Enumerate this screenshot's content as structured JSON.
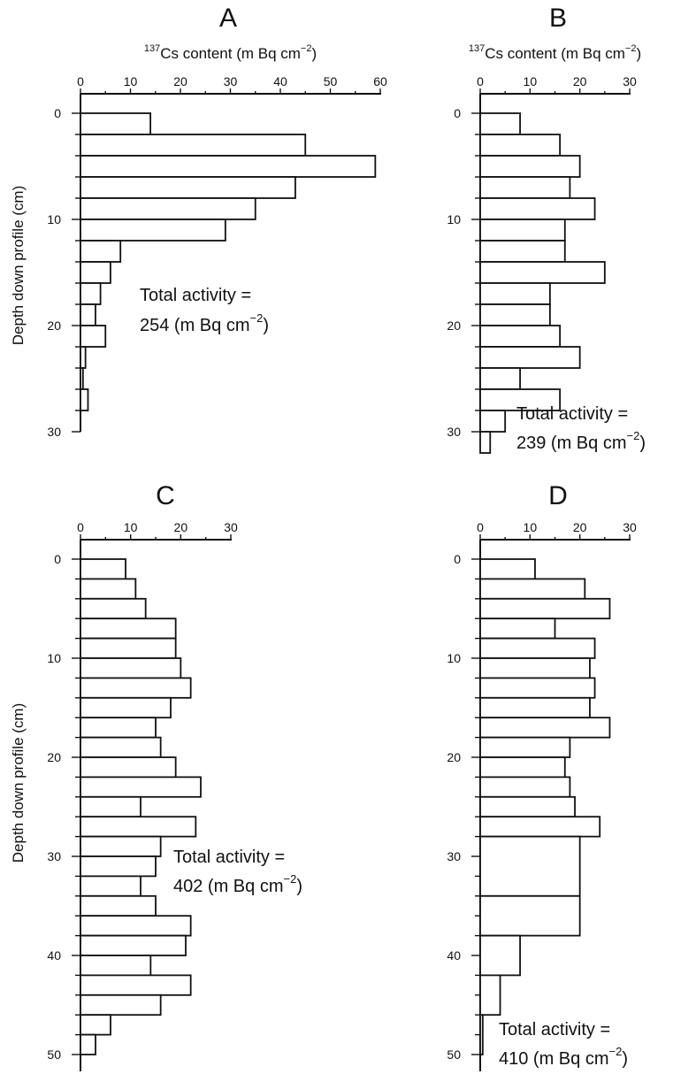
{
  "chart_data": [
    {
      "panel": "A",
      "type": "bar",
      "orientation": "horizontal",
      "xlabel": {
        "iso_sup": "137",
        "main": "Cs content (m Bq cm",
        "exp": "−2",
        "close": ")"
      },
      "ylabel": "Depth down profile (cm)",
      "xlim": [
        0,
        60
      ],
      "xticks": [
        0,
        10,
        20,
        30,
        40,
        50,
        60
      ],
      "ylim": [
        0,
        32
      ],
      "yticks": [
        0,
        10,
        20,
        30
      ],
      "bars": [
        {
          "from": 0,
          "to": 2,
          "value": 14
        },
        {
          "from": 2,
          "to": 4,
          "value": 45
        },
        {
          "from": 4,
          "to": 6,
          "value": 59
        },
        {
          "from": 6,
          "to": 8,
          "value": 43
        },
        {
          "from": 8,
          "to": 10,
          "value": 35
        },
        {
          "from": 10,
          "to": 12,
          "value": 29
        },
        {
          "from": 12,
          "to": 14,
          "value": 8
        },
        {
          "from": 14,
          "to": 16,
          "value": 6
        },
        {
          "from": 16,
          "to": 18,
          "value": 4
        },
        {
          "from": 18,
          "to": 20,
          "value": 3
        },
        {
          "from": 20,
          "to": 22,
          "value": 5
        },
        {
          "from": 22,
          "to": 24,
          "value": 1
        },
        {
          "from": 24,
          "to": 26,
          "value": 0.5
        },
        {
          "from": 26,
          "to": 28,
          "value": 1.5
        }
      ],
      "total": {
        "line1": "Total activity =",
        "main": "254 (m Bq cm",
        "exp": "−2",
        "close": ")"
      }
    },
    {
      "panel": "B",
      "type": "bar",
      "orientation": "horizontal",
      "xlabel": {
        "iso_sup": "137",
        "main": "Cs content (m Bq cm",
        "exp": "−2",
        "close": ")"
      },
      "ylabel": "",
      "xlim": [
        0,
        30
      ],
      "xticks": [
        0,
        10,
        20,
        30
      ],
      "ylim": [
        0,
        32
      ],
      "yticks": [
        0,
        10,
        20,
        30
      ],
      "bars": [
        {
          "from": 0,
          "to": 2,
          "value": 8
        },
        {
          "from": 2,
          "to": 4,
          "value": 16
        },
        {
          "from": 4,
          "to": 6,
          "value": 20
        },
        {
          "from": 6,
          "to": 8,
          "value": 18
        },
        {
          "from": 8,
          "to": 10,
          "value": 23
        },
        {
          "from": 10,
          "to": 12,
          "value": 17
        },
        {
          "from": 12,
          "to": 14,
          "value": 17
        },
        {
          "from": 14,
          "to": 16,
          "value": 25
        },
        {
          "from": 16,
          "to": 18,
          "value": 14
        },
        {
          "from": 18,
          "to": 20,
          "value": 14
        },
        {
          "from": 20,
          "to": 22,
          "value": 16
        },
        {
          "from": 22,
          "to": 24,
          "value": 20
        },
        {
          "from": 24,
          "to": 26,
          "value": 8
        },
        {
          "from": 26,
          "to": 28,
          "value": 16
        },
        {
          "from": 28,
          "to": 30,
          "value": 5
        },
        {
          "from": 30,
          "to": 32,
          "value": 2
        }
      ],
      "total": {
        "line1": "Total activity =",
        "main": "239 (m Bq cm",
        "exp": "−2",
        "close": ")"
      }
    },
    {
      "panel": "C",
      "type": "bar",
      "orientation": "horizontal",
      "xlabel": null,
      "ylabel": "Depth down profile (cm)",
      "xlim": [
        0,
        30
      ],
      "xticks": [
        0,
        10,
        20,
        30
      ],
      "ylim": [
        0,
        51
      ],
      "yticks": [
        0,
        10,
        20,
        30,
        40,
        50
      ],
      "bars": [
        {
          "from": 0,
          "to": 2,
          "value": 9
        },
        {
          "from": 2,
          "to": 4,
          "value": 11
        },
        {
          "from": 4,
          "to": 6,
          "value": 13
        },
        {
          "from": 6,
          "to": 8,
          "value": 19
        },
        {
          "from": 8,
          "to": 10,
          "value": 19
        },
        {
          "from": 10,
          "to": 12,
          "value": 20
        },
        {
          "from": 12,
          "to": 14,
          "value": 22
        },
        {
          "from": 14,
          "to": 16,
          "value": 18
        },
        {
          "from": 16,
          "to": 18,
          "value": 15
        },
        {
          "from": 18,
          "to": 20,
          "value": 16
        },
        {
          "from": 20,
          "to": 22,
          "value": 19
        },
        {
          "from": 22,
          "to": 24,
          "value": 24
        },
        {
          "from": 24,
          "to": 26,
          "value": 12
        },
        {
          "from": 26,
          "to": 28,
          "value": 23
        },
        {
          "from": 28,
          "to": 30,
          "value": 16
        },
        {
          "from": 30,
          "to": 32,
          "value": 15
        },
        {
          "from": 32,
          "to": 34,
          "value": 12
        },
        {
          "from": 34,
          "to": 36,
          "value": 15
        },
        {
          "from": 36,
          "to": 38,
          "value": 22
        },
        {
          "from": 38,
          "to": 40,
          "value": 21
        },
        {
          "from": 40,
          "to": 42,
          "value": 14
        },
        {
          "from": 42,
          "to": 44,
          "value": 22
        },
        {
          "from": 44,
          "to": 46,
          "value": 16
        },
        {
          "from": 46,
          "to": 48,
          "value": 6
        },
        {
          "from": 48,
          "to": 50,
          "value": 3
        }
      ],
      "total": {
        "line1": "Total activity =",
        "main": "402 (m Bq cm",
        "exp": "−2",
        "close": ")"
      }
    },
    {
      "panel": "D",
      "type": "bar",
      "orientation": "horizontal",
      "xlabel": null,
      "ylabel": "",
      "xlim": [
        0,
        30
      ],
      "xticks": [
        0,
        10,
        20,
        30
      ],
      "ylim": [
        0,
        51
      ],
      "yticks": [
        0,
        10,
        20,
        30,
        40,
        50
      ],
      "bars": [
        {
          "from": 0,
          "to": 2,
          "value": 11
        },
        {
          "from": 2,
          "to": 4,
          "value": 21
        },
        {
          "from": 4,
          "to": 6,
          "value": 26
        },
        {
          "from": 6,
          "to": 8,
          "value": 15
        },
        {
          "from": 8,
          "to": 10,
          "value": 23
        },
        {
          "from": 10,
          "to": 12,
          "value": 22
        },
        {
          "from": 12,
          "to": 14,
          "value": 23
        },
        {
          "from": 14,
          "to": 16,
          "value": 22
        },
        {
          "from": 16,
          "to": 18,
          "value": 26
        },
        {
          "from": 18,
          "to": 20,
          "value": 18
        },
        {
          "from": 20,
          "to": 22,
          "value": 17
        },
        {
          "from": 22,
          "to": 24,
          "value": 18
        },
        {
          "from": 24,
          "to": 26,
          "value": 19
        },
        {
          "from": 26,
          "to": 28,
          "value": 24
        },
        {
          "from": 28,
          "to": 34,
          "value": 20
        },
        {
          "from": 34,
          "to": 38,
          "value": 20
        },
        {
          "from": 38,
          "to": 42,
          "value": 8
        },
        {
          "from": 42,
          "to": 46,
          "value": 4
        },
        {
          "from": 46,
          "to": 50,
          "value": 0.5
        }
      ],
      "total": {
        "line1": "Total activity =",
        "main": "410 (m Bq cm",
        "exp": "−2",
        "close": ")"
      }
    }
  ]
}
